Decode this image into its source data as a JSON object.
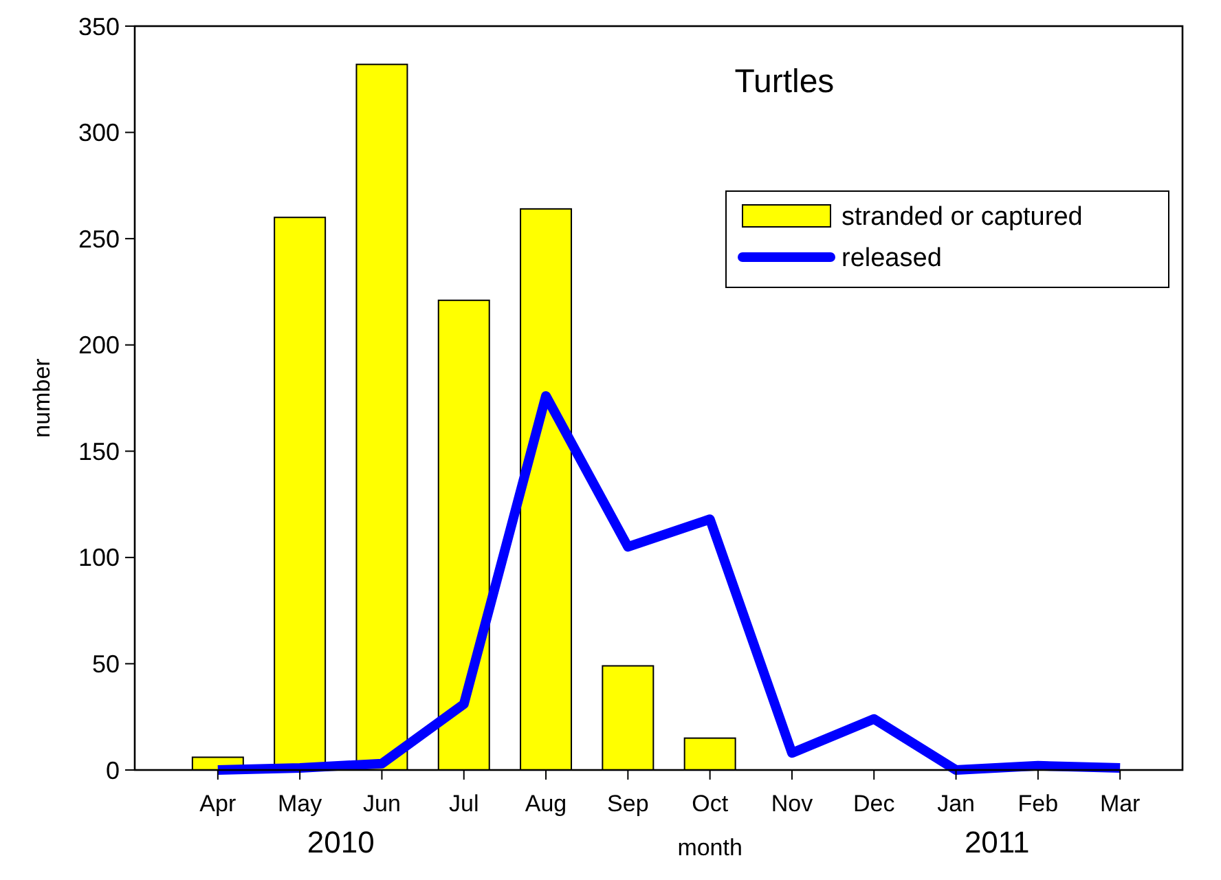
{
  "chart_data": {
    "type": "bar",
    "title": "Turtles",
    "xlabel": "month",
    "ylabel": "number",
    "categories": [
      "Apr",
      "May",
      "Jun",
      "Jul",
      "Aug",
      "Sep",
      "Oct",
      "Nov",
      "Dec",
      "Jan",
      "Feb",
      "Mar"
    ],
    "series": [
      {
        "name": "stranded or captured",
        "color": "#ffff00",
        "values": [
          6,
          260,
          332,
          221,
          264,
          49,
          15,
          null,
          null,
          null,
          null,
          null
        ]
      },
      {
        "name": "released",
        "type": "line",
        "color": "#0000ff",
        "values": [
          0,
          1,
          3,
          31,
          176,
          105,
          118,
          8,
          24,
          0,
          2,
          1
        ]
      }
    ],
    "ylim": [
      0,
      350
    ],
    "yticks": [
      0,
      50,
      100,
      150,
      200,
      250,
      300,
      350
    ],
    "grid": false,
    "legend": "top right",
    "marker": "none",
    "line_style": "solid",
    "annotations": [
      "2010",
      "2011"
    ]
  }
}
